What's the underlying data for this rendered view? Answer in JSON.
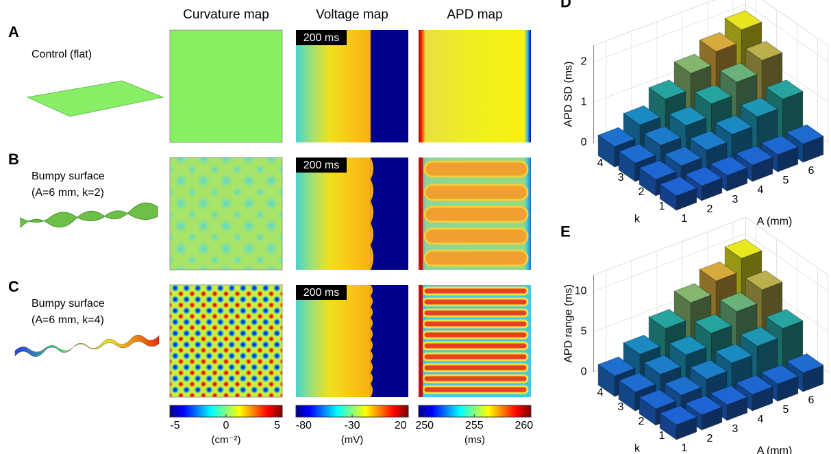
{
  "figure": {
    "column_headers": [
      "Curvature map",
      "Voltage map",
      "APD map"
    ],
    "rows": [
      {
        "letter": "A",
        "label_lines": [
          "Control (flat)"
        ],
        "time_label": "200 ms"
      },
      {
        "letter": "B",
        "label_lines": [
          "Bumpy surface",
          "(A=6 mm, k=2)"
        ],
        "time_label": "200 ms"
      },
      {
        "letter": "C",
        "label_lines": [
          "Bumpy surface",
          "(A=6 mm, k=4)"
        ],
        "time_label": "200 ms"
      }
    ],
    "colorbars": [
      {
        "ticks": [
          -5,
          0,
          5
        ],
        "lim": [
          -5.5,
          5.5
        ],
        "unit": "(cm⁻²)"
      },
      {
        "ticks": [
          -80,
          -30,
          20
        ],
        "lim": [
          -88,
          28
        ],
        "unit": "(mV)"
      },
      {
        "ticks": [
          250,
          255,
          260
        ],
        "lim": [
          249.4,
          260.7
        ],
        "unit": "(ms)"
      }
    ]
  },
  "chart_data": [
    {
      "type": "bar3d",
      "panel": "D",
      "zlabel": "APD SD (ms)",
      "xlabel": "A (mm)",
      "klabel": "k",
      "x": [
        1,
        2,
        3,
        4,
        5,
        6
      ],
      "k": [
        1,
        2,
        3,
        4
      ],
      "zlim": [
        0,
        2.4
      ],
      "zticks": [
        0,
        1,
        2
      ],
      "values": [
        [
          0.05,
          0.06,
          0.08,
          0.1,
          0.12,
          0.15
        ],
        [
          0.1,
          0.2,
          0.35,
          0.5,
          0.7,
          0.9
        ],
        [
          0.15,
          0.35,
          0.6,
          0.9,
          1.2,
          1.5
        ],
        [
          0.2,
          0.5,
          0.9,
          1.3,
          1.6,
          1.9
        ]
      ]
    },
    {
      "type": "bar3d",
      "panel": "E",
      "zlabel": "APD range (ms)",
      "xlabel": "A (mm)",
      "klabel": "k",
      "x": [
        1,
        2,
        3,
        4,
        5,
        6
      ],
      "k": [
        1,
        2,
        3,
        4
      ],
      "zlim": [
        0,
        12
      ],
      "zticks": [
        0,
        5,
        10
      ],
      "values": [
        [
          0.3,
          0.35,
          0.4,
          0.5,
          0.6,
          0.8
        ],
        [
          0.5,
          1.0,
          1.8,
          2.6,
          3.5,
          4.5
        ],
        [
          0.8,
          1.8,
          3.0,
          4.5,
          6.0,
          7.5
        ],
        [
          1.0,
          2.5,
          4.5,
          6.5,
          8.0,
          9.6
        ]
      ]
    }
  ]
}
